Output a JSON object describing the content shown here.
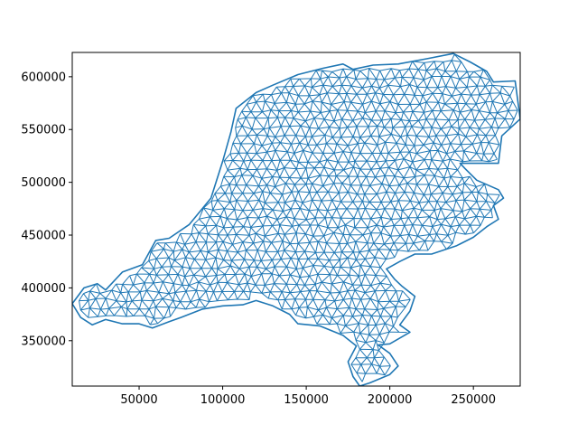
{
  "chart_data": {
    "type": "mesh",
    "title": "",
    "xlabel": "",
    "ylabel": "",
    "xlim": [
      10000,
      278000
    ],
    "ylim": [
      307000,
      623000
    ],
    "grid": false,
    "legend": "none",
    "series_color": "#1f77b4",
    "x_ticks": [
      {
        "value": 50000,
        "label": "50000"
      },
      {
        "value": 100000,
        "label": "100000"
      },
      {
        "value": 150000,
        "label": "150000"
      },
      {
        "value": 200000,
        "label": "200000"
      },
      {
        "value": 250000,
        "label": "250000"
      }
    ],
    "y_ticks": [
      {
        "value": 350000,
        "label": "350000"
      },
      {
        "value": 400000,
        "label": "400000"
      },
      {
        "value": 450000,
        "label": "450000"
      },
      {
        "value": 500000,
        "label": "500000"
      },
      {
        "value": 550000,
        "label": "550000"
      },
      {
        "value": 600000,
        "label": "600000"
      }
    ],
    "outline": [
      [
        10000,
        385000
      ],
      [
        17000,
        400000
      ],
      [
        25000,
        404000
      ],
      [
        30000,
        398000
      ],
      [
        40000,
        415000
      ],
      [
        52000,
        422000
      ],
      [
        60000,
        445000
      ],
      [
        68000,
        447000
      ],
      [
        80000,
        460000
      ],
      [
        93000,
        485000
      ],
      [
        100000,
        520000
      ],
      [
        105000,
        548000
      ],
      [
        108000,
        570000
      ],
      [
        120000,
        585000
      ],
      [
        130000,
        592000
      ],
      [
        145000,
        602000
      ],
      [
        160000,
        608000
      ],
      [
        172000,
        612000
      ],
      [
        178000,
        607000
      ],
      [
        190000,
        611000
      ],
      [
        205000,
        612000
      ],
      [
        222000,
        617000
      ],
      [
        238000,
        622000
      ],
      [
        248000,
        614000
      ],
      [
        258000,
        605000
      ],
      [
        262000,
        595000
      ],
      [
        275000,
        596000
      ],
      [
        278000,
        560000
      ],
      [
        267000,
        544000
      ],
      [
        265000,
        518000
      ],
      [
        242000,
        518000
      ],
      [
        245000,
        513000
      ],
      [
        252000,
        502000
      ],
      [
        265000,
        493000
      ],
      [
        268000,
        485000
      ],
      [
        262000,
        478000
      ],
      [
        265000,
        465000
      ],
      [
        258000,
        458000
      ],
      [
        250000,
        448000
      ],
      [
        240000,
        440000
      ],
      [
        225000,
        432000
      ],
      [
        215000,
        432000
      ],
      [
        206000,
        425000
      ],
      [
        198000,
        418000
      ],
      [
        203000,
        408000
      ],
      [
        207000,
        402000
      ],
      [
        215000,
        392000
      ],
      [
        212000,
        378000
      ],
      [
        206000,
        365000
      ],
      [
        212000,
        358000
      ],
      [
        200000,
        347000
      ],
      [
        193000,
        346000
      ],
      [
        200000,
        338000
      ],
      [
        205000,
        326000
      ],
      [
        200000,
        318000
      ],
      [
        188000,
        310000
      ],
      [
        182000,
        307000
      ],
      [
        178000,
        316000
      ],
      [
        175000,
        330000
      ],
      [
        180000,
        345000
      ],
      [
        172000,
        355000
      ],
      [
        158000,
        364000
      ],
      [
        145000,
        366000
      ],
      [
        140000,
        375000
      ],
      [
        130000,
        383000
      ],
      [
        120000,
        388000
      ],
      [
        112000,
        384000
      ],
      [
        100000,
        383000
      ],
      [
        88000,
        380000
      ],
      [
        75000,
        372000
      ],
      [
        68000,
        368000
      ],
      [
        58000,
        362000
      ],
      [
        50000,
        366000
      ],
      [
        40000,
        366000
      ],
      [
        30000,
        370000
      ],
      [
        22000,
        365000
      ],
      [
        15000,
        372000
      ]
    ]
  }
}
